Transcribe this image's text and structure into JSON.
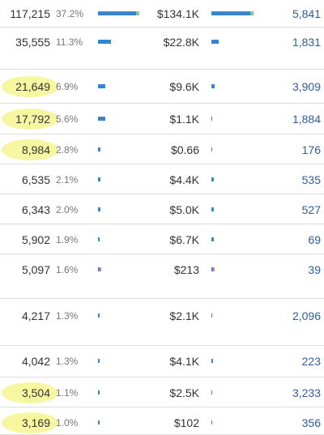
{
  "colors": {
    "bar_blue": "#3a85d0",
    "bar_green": "#7ec98b",
    "bar_pink": "#e4838f",
    "link": "#2e5d9e",
    "highlight": "#f6f491"
  },
  "rows": [
    {
      "count": "117,215",
      "pct": "37.2%",
      "revenue": "$134.1K",
      "link": "5,841",
      "bar1_share": 0.372,
      "bar2_share": 0.5,
      "accent": "green",
      "highlighted": false
    },
    {
      "count": "35,555",
      "pct": "11.3%",
      "revenue": "$22.8K",
      "link": "1,831",
      "bar1_share": 0.113,
      "bar2_share": 0.085,
      "accent": "none",
      "highlighted": false
    },
    {
      "count": "21,649",
      "pct": "6.9%",
      "revenue": "$9.6K",
      "link": "3,909",
      "bar1_share": 0.069,
      "bar2_share": 0.036,
      "accent": "none",
      "highlighted": true
    },
    {
      "count": "17,792",
      "pct": "5.6%",
      "revenue": "$1.1K",
      "link": "1,884",
      "bar1_share": 0.056,
      "bar2_share": 0.004,
      "accent": "none",
      "highlighted": true
    },
    {
      "count": "8,984",
      "pct": "2.8%",
      "revenue": "$0.66",
      "link": "176",
      "bar1_share": 0.028,
      "bar2_share": 0.0,
      "accent": "none",
      "highlighted": true
    },
    {
      "count": "6,535",
      "pct": "2.1%",
      "revenue": "$4.4K",
      "link": "535",
      "bar1_share": 0.021,
      "bar2_share": 0.016,
      "accent": "none",
      "highlighted": false
    },
    {
      "count": "6,343",
      "pct": "2.0%",
      "revenue": "$5.0K",
      "link": "527",
      "bar1_share": 0.02,
      "bar2_share": 0.019,
      "accent": "none",
      "highlighted": false
    },
    {
      "count": "5,902",
      "pct": "1.9%",
      "revenue": "$6.7K",
      "link": "69",
      "bar1_share": 0.019,
      "bar2_share": 0.025,
      "accent": "none",
      "highlighted": false
    },
    {
      "count": "5,097",
      "pct": "1.6%",
      "revenue": "$213",
      "link": "39",
      "bar1_share": 0.016,
      "bar2_share": 0.001,
      "accent": "pink",
      "highlighted": false
    },
    {
      "count": "4,217",
      "pct": "1.3%",
      "revenue": "$2.1K",
      "link": "2,096",
      "bar1_share": 0.013,
      "bar2_share": 0.008,
      "accent": "none",
      "highlighted": false
    },
    {
      "count": "4,042",
      "pct": "1.3%",
      "revenue": "$4.1K",
      "link": "223",
      "bar1_share": 0.013,
      "bar2_share": 0.015,
      "accent": "none",
      "highlighted": false
    },
    {
      "count": "3,504",
      "pct": "1.1%",
      "revenue": "$2.5K",
      "link": "3,233",
      "bar1_share": 0.011,
      "bar2_share": 0.009,
      "accent": "none",
      "highlighted": true
    },
    {
      "count": "3,169",
      "pct": "1.0%",
      "revenue": "$102",
      "link": "356",
      "bar1_share": 0.01,
      "bar2_share": 0.0,
      "accent": "none",
      "highlighted": true
    }
  ]
}
